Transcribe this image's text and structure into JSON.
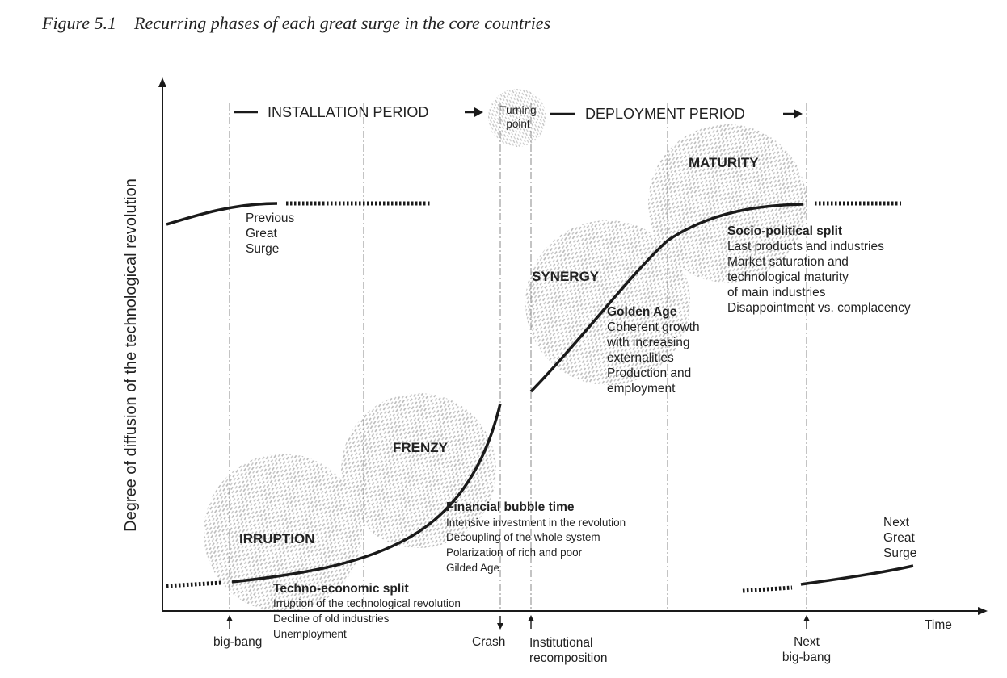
{
  "figure": {
    "title": "Figure 5.1    Recurring phases of each great surge in the core countries",
    "y_axis_label": "Degree of diffusion of the technological revolution",
    "x_axis_label": "Time"
  },
  "periods": {
    "installation": "INSTALLATION PERIOD",
    "turning_point": [
      "Turning",
      "point"
    ],
    "deployment": "DEPLOYMENT PERIOD"
  },
  "phases": {
    "irruption": "IRRUPTION",
    "frenzy": "FRENZY",
    "synergy": "SYNERGY",
    "maturity": "MATURITY"
  },
  "previous_surge": [
    "Previous",
    "Great",
    "Surge"
  ],
  "next_surge": [
    "Next",
    "Great",
    "Surge"
  ],
  "techno_economic_split": {
    "title": "Techno-economic split",
    "lines": [
      "Irruption of the technological revolution",
      "Decline of old industries",
      "Unemployment"
    ]
  },
  "financial_bubble": {
    "title": "Financial bubble time",
    "lines": [
      "Intensive investment in the revolution",
      "Decoupling of the whole system",
      "Polarization of rich and poor",
      "Gilded Age"
    ]
  },
  "golden_age": {
    "title": "Golden Age",
    "lines": [
      "Coherent growth",
      "with increasing",
      "externalities",
      "Production and",
      "employment"
    ]
  },
  "socio_political_split": {
    "title": "Socio-political split",
    "lines": [
      "Last products and industries",
      "Market saturation and",
      "technological maturity",
      "of main industries",
      "Disappointment vs. complacency"
    ]
  },
  "markers": {
    "big_bang": "big-bang",
    "crash": "Crash",
    "institutional_recomposition": [
      "Institutional",
      "recomposition"
    ],
    "next_big_bang": [
      "Next",
      "big-bang"
    ]
  },
  "colors": {
    "ink": "#1a1a1a",
    "texture": "#b5b5b5",
    "guide": "#8a8a8a"
  }
}
